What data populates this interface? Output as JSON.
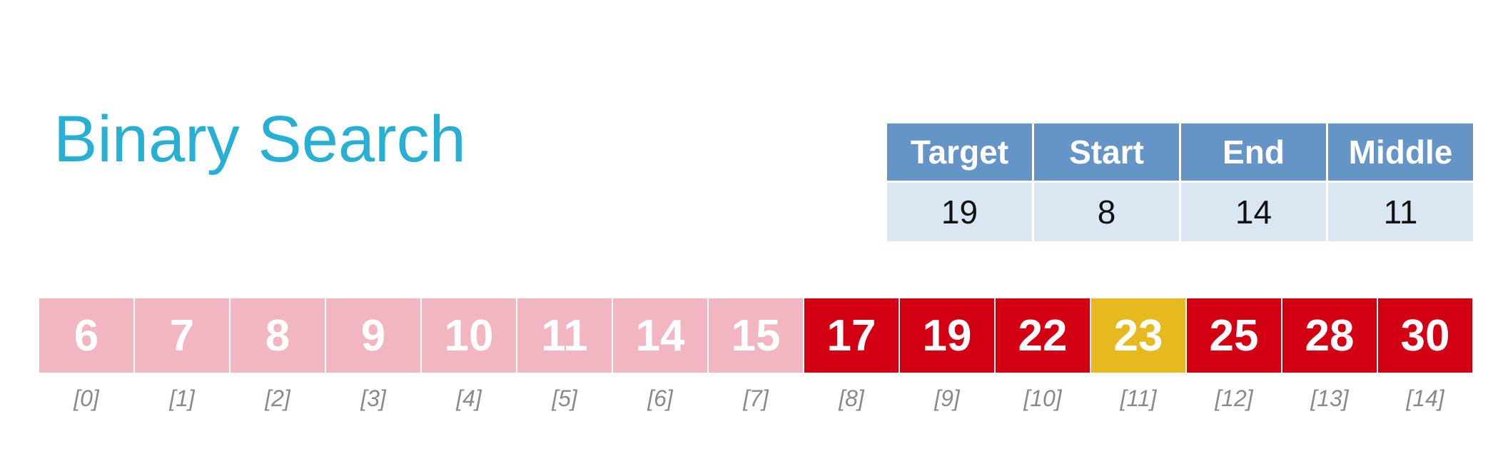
{
  "title": "Binary Search",
  "variables": {
    "headers": [
      "Target",
      "Start",
      "End",
      "Middle"
    ],
    "values": [
      "19",
      "8",
      "14",
      "11"
    ],
    "header_color": "#6595c6",
    "value_bg_color": "#dbe6f3"
  },
  "array": {
    "values": [
      "6",
      "7",
      "8",
      "9",
      "10",
      "11",
      "14",
      "15",
      "17",
      "19",
      "22",
      "23",
      "25",
      "28",
      "30"
    ],
    "indices": [
      "[0]",
      "[1]",
      "[2]",
      "[3]",
      "[4]",
      "[5]",
      "[6]",
      "[7]",
      "[8]",
      "[9]",
      "[10]",
      "[11]",
      "[12]",
      "[13]",
      "[14]"
    ],
    "states": [
      "excluded",
      "excluded",
      "excluded",
      "excluded",
      "excluded",
      "excluded",
      "excluded",
      "excluded",
      "active",
      "active",
      "active",
      "middle",
      "active",
      "active",
      "active"
    ],
    "colors": {
      "excluded": "#f2b6c2",
      "active": "#d30013",
      "middle": "#e6b91e"
    }
  },
  "colors": {
    "title": "#27b0d4"
  }
}
